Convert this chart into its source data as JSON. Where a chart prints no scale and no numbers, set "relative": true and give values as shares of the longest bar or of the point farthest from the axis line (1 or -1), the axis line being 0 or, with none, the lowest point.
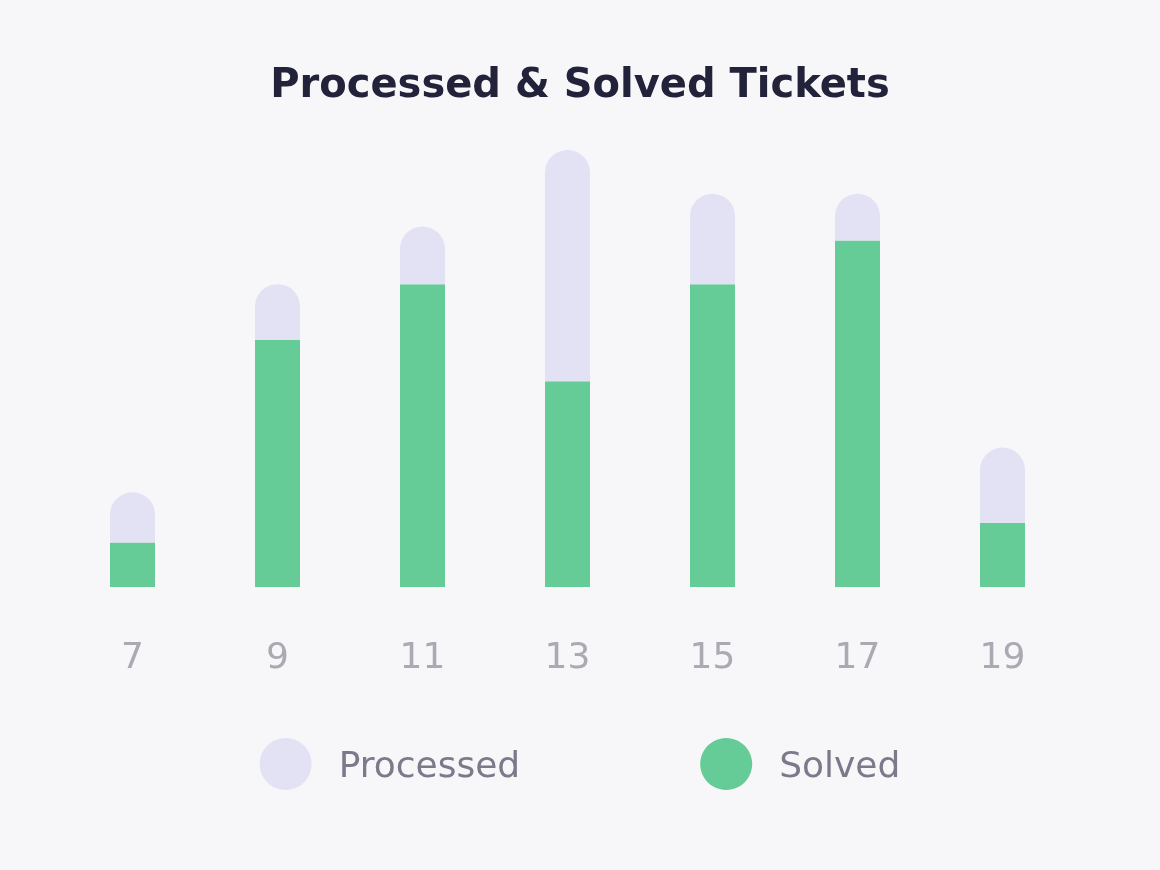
{
  "chart_data": {
    "type": "bar",
    "title": "Processed & Solved Tickets",
    "relative": true,
    "stacked": true,
    "categories": [
      "7",
      "9",
      "11",
      "13",
      "15",
      "17",
      "19"
    ],
    "series": [
      {
        "name": "Solved",
        "color": "#66cc97",
        "values": [
          0.102,
          0.566,
          0.693,
          0.471,
          0.693,
          0.793,
          0.147
        ]
      },
      {
        "name": "Processed",
        "color": "#e3e1f4",
        "values": [
          0.115,
          0.127,
          0.132,
          0.529,
          0.207,
          0.107,
          0.172
        ]
      }
    ],
    "legend": "bottom"
  }
}
